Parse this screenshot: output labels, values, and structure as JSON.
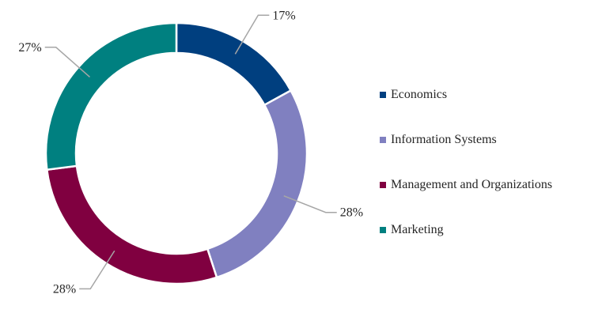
{
  "chart_data": {
    "type": "pie",
    "donut": true,
    "title": "",
    "categories": [
      "Economics",
      "Information Systems",
      "Management and Organizations",
      "Marketing"
    ],
    "values": [
      17,
      28,
      28,
      27
    ],
    "labels": [
      "17%",
      "28%",
      "28%",
      "27%"
    ],
    "colors": [
      "#003f7f",
      "#8080c0",
      "#800040",
      "#008080"
    ],
    "legend_position": "right"
  }
}
